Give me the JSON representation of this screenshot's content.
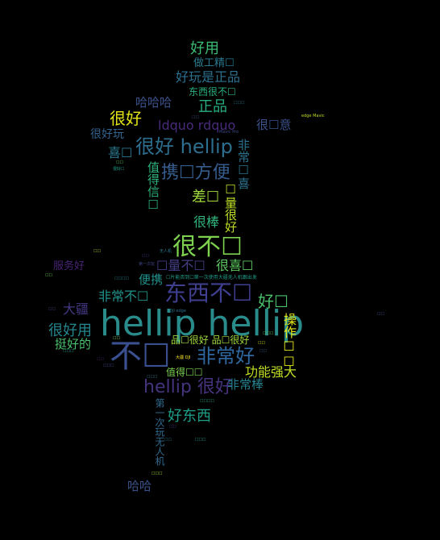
{
  "background": "#000000",
  "words": [
    {
      "id": "w01",
      "text": "hellip hellip",
      "color": "#2a8b8b"
    },
    {
      "id": "w02",
      "text": "不☐",
      "color": "#3a4f8e"
    },
    {
      "id": "w03",
      "text": "很不☐",
      "color": "#7ed04f"
    },
    {
      "id": "w04",
      "text": "东西不☐",
      "color": "#3f3f8f"
    },
    {
      "id": "w05",
      "text": "很好 hellip",
      "color": "#2d6e8e"
    },
    {
      "id": "w06",
      "text": "非常好",
      "color": "#2f68a0"
    },
    {
      "id": "w07",
      "text": "hellip 很好",
      "color": "#46337e"
    },
    {
      "id": "w08",
      "text": "携☐方便",
      "color": "#365c8d"
    },
    {
      "id": "w09",
      "text": "很好",
      "color": "#e3e418"
    },
    {
      "id": "w10",
      "text": "好用",
      "color": "#3dbc74"
    },
    {
      "id": "w11",
      "text": "正品",
      "color": "#28ae80"
    },
    {
      "id": "w12",
      "text": "好玩是正品",
      "color": "#2c718e"
    },
    {
      "id": "w13",
      "text": "ldquo rdquo",
      "color": "#472a7a"
    },
    {
      "id": "w14",
      "text": "很好用",
      "color": "#24868e"
    },
    {
      "id": "w15",
      "text": "好东西",
      "color": "#1f9e89"
    },
    {
      "id": "w16",
      "text": "功能强大",
      "color": "#c2df23"
    },
    {
      "id": "w17",
      "text": "非常不☐",
      "color": "#21918c"
    },
    {
      "id": "w18",
      "text": "好☐",
      "color": "#4ac16d"
    },
    {
      "id": "w19",
      "text": "操作☐☐",
      "color": "#e3e418"
    },
    {
      "id": "w20",
      "text": "很棒",
      "color": "#2fb47c"
    },
    {
      "id": "w21",
      "text": "差☐",
      "color": "#9fda3a"
    },
    {
      "id": "w22",
      "text": "哈哈哈",
      "color": "#3b528b"
    },
    {
      "id": "w23",
      "text": "大疆",
      "color": "#443983"
    },
    {
      "id": "w24",
      "text": "挺好的",
      "color": "#4ac16d"
    },
    {
      "id": "w25",
      "text": "哈哈",
      "color": "#3b528b"
    },
    {
      "id": "w26",
      "text": "非常棒",
      "color": "#26828e"
    },
    {
      "id": "w27",
      "text": "喜☐",
      "color": "#2a788e"
    },
    {
      "id": "w28",
      "text": "很好玩",
      "color": "#33638d"
    },
    {
      "id": "w29",
      "text": "很☐意",
      "color": "#3b528b"
    },
    {
      "id": "w30",
      "text": "☐量不☐",
      "color": "#433e85"
    },
    {
      "id": "w31",
      "text": "很喜☐",
      "color": "#5ec962"
    },
    {
      "id": "w32",
      "text": "便携",
      "color": "#21918c"
    },
    {
      "id": "w33",
      "text": "服务好",
      "color": "#482475"
    },
    {
      "id": "w34",
      "text": "值得☐☐",
      "color": "#7ad151"
    },
    {
      "id": "w35",
      "text": "做工精☐",
      "color": "#2a788e"
    },
    {
      "id": "w36",
      "text": "东西很不☐",
      "color": "#2ab07f"
    },
    {
      "id": "w37",
      "text": "品☐很好 品☐很好",
      "color": "#9fda3a"
    },
    {
      "id": "w38",
      "text": "☐量很好",
      "color": "#bddf26"
    },
    {
      "id": "w39",
      "text": "非常☐喜",
      "color": "#2c728e"
    },
    {
      "id": "w40",
      "text": "值得信☐",
      "color": "#2db27d"
    },
    {
      "id": "w41",
      "text": "第一次玩无人机",
      "color": "#306a8e"
    },
    {
      "id": "w42",
      "text": "☐片能否到☐第一次使用大疆无人机跟出发",
      "color": "#1f9e89"
    },
    {
      "id": "w43",
      "text": "edge Mavic",
      "color": "#bddf26"
    },
    {
      "id": "w44",
      "text": "Mavic Pro",
      "color": "#3e4989"
    },
    {
      "id": "w45",
      "text": "DJI edge",
      "color": "#2c718e"
    },
    {
      "id": "w46",
      "text": "大疆 DJI",
      "color": "#fde725"
    },
    {
      "id": "w47",
      "text": "第一次玩",
      "color": "#414487"
    },
    {
      "id": "w48",
      "text": "无人机",
      "color": "#2a788e"
    },
    {
      "id": "w49",
      "text": "很好☐",
      "color": "#1f9e89"
    },
    {
      "id": "w50",
      "text": "☐☐",
      "color": "#3b528b"
    },
    {
      "id": "w51",
      "text": "☐☐",
      "color": "#5ec962"
    },
    {
      "id": "w52",
      "text": "☐☐☐",
      "color": "#2c728e"
    },
    {
      "id": "w53",
      "text": "☐☐",
      "color": "#b5de2b"
    },
    {
      "id": "w54",
      "text": "☐☐",
      "color": "#46337e"
    },
    {
      "id": "w55",
      "text": "☐☐☐☐",
      "color": "#26828e"
    },
    {
      "id": "w56",
      "text": "☐☐",
      "color": "#6ccd5a"
    },
    {
      "id": "w57",
      "text": "☐☐",
      "color": "#3e4989"
    },
    {
      "id": "w58",
      "text": "☐☐",
      "color": "#84d44b"
    },
    {
      "id": "w59",
      "text": "☐☐☐",
      "color": "#1fa188"
    },
    {
      "id": "w60",
      "text": "☐☐",
      "color": "#481f70"
    },
    {
      "id": "w61",
      "text": "☐☐☐",
      "color": "#3f4788"
    },
    {
      "id": "w62",
      "text": "☐☐☐",
      "color": "#2d708e"
    },
    {
      "id": "w63",
      "text": "☐☐",
      "color": "#d2e21b"
    },
    {
      "id": "w64",
      "text": "☐☐☐",
      "color": "#5ec962"
    },
    {
      "id": "w65",
      "text": "☐☐",
      "color": "#38598c"
    },
    {
      "id": "w66",
      "text": "☐☐☐☐",
      "color": "#22a785"
    },
    {
      "id": "w67",
      "text": "☐☐",
      "color": "#453882"
    },
    {
      "id": "w68",
      "text": "☐☐☐",
      "color": "#1e9b8a"
    },
    {
      "id": "w69",
      "text": "☐☐",
      "color": "#2a788e"
    },
    {
      "id": "w70",
      "text": "☐☐☐",
      "color": "#a2da37"
    },
    {
      "id": "w71",
      "text": "☐☐",
      "color": "#3b528b"
    }
  ]
}
